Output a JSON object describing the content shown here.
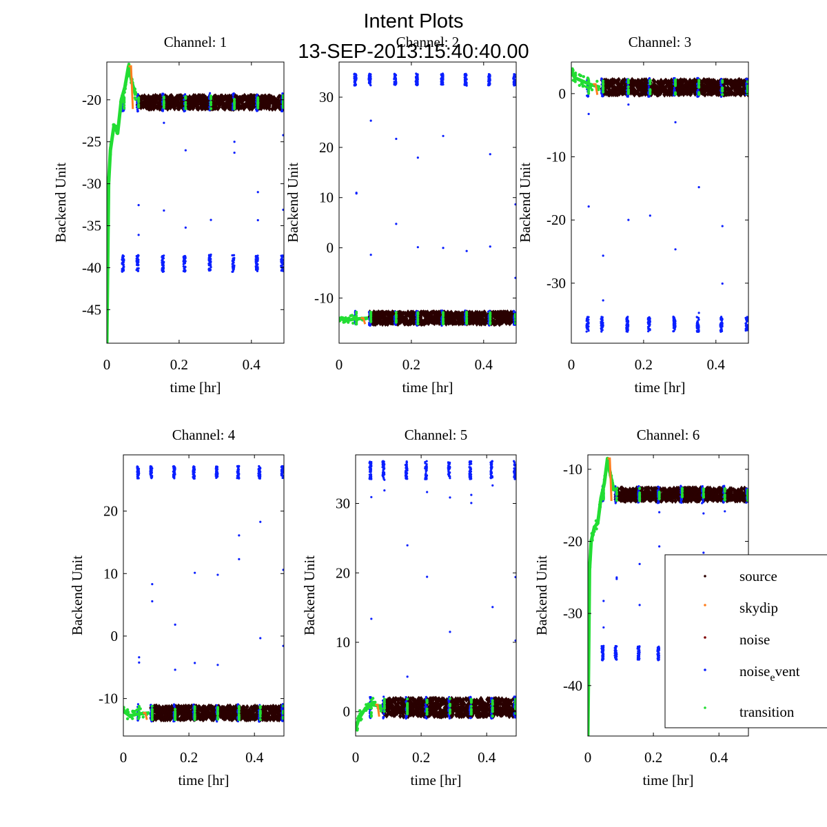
{
  "figure": {
    "title": "Intent Plots",
    "subtitle": "13-SEP-2013:15:40:40.00"
  },
  "legend": {
    "items": [
      {
        "label": "source",
        "color": "#2a0000"
      },
      {
        "label": "skydip",
        "color": "#ff7f1f"
      },
      {
        "label": "noise",
        "color": "#7f0000"
      },
      {
        "label": "noise",
        "sub": "e",
        "tail": "vent",
        "color": "#0a1fff"
      },
      {
        "label": "transition",
        "color": "#22dd33"
      }
    ]
  },
  "colors": {
    "source": "#2a0000",
    "skydip": "#ff7f1f",
    "noise": "#7f0000",
    "noise_event": "#0a1fff",
    "transition": "#22dd33",
    "axes": "#000000"
  },
  "chart_data": [
    {
      "type": "scatter",
      "title": "Channel: 1",
      "xlabel": "time [hr]",
      "ylabel": "Backend Unit",
      "xlim": [
        0,
        0.49
      ],
      "ylim": [
        -49,
        -15.5
      ],
      "xticks": [
        0,
        0.2,
        0.4
      ],
      "yticks": [
        -45,
        -40,
        -35,
        -30,
        -25,
        -20
      ],
      "series": {
        "source_level": -20.3,
        "source_spread": 0.8,
        "event_low_level": -39.5,
        "event_low_spread": 1.0,
        "event_x": [
          0.045,
          0.085,
          0.155,
          0.215,
          0.285,
          0.35,
          0.415,
          0.485
        ],
        "ramp": [
          [
            0.0,
            -49
          ],
          [
            0.005,
            -30
          ],
          [
            0.01,
            -26
          ],
          [
            0.02,
            -23
          ],
          [
            0.03,
            -24
          ],
          [
            0.04,
            -20
          ],
          [
            0.05,
            -18.5
          ],
          [
            0.06,
            -16
          ],
          [
            0.07,
            -18
          ],
          [
            0.08,
            -19.5
          ]
        ]
      }
    },
    {
      "type": "scatter",
      "title": "Channel: 2",
      "xlabel": "time [hr]",
      "ylabel": "Backend Unit",
      "xlim": [
        0,
        0.49
      ],
      "ylim": [
        -19,
        37
      ],
      "xticks": [
        0,
        0.2,
        0.4
      ],
      "yticks": [
        -10,
        0,
        10,
        20,
        30
      ],
      "series": {
        "source_level": -14,
        "source_spread": 1.2,
        "event_high_level": 33.5,
        "event_high_spread": 1.2,
        "event_x": [
          0.045,
          0.085,
          0.155,
          0.215,
          0.285,
          0.35,
          0.415,
          0.485
        ],
        "ramp": [
          [
            0.0,
            -14
          ],
          [
            0.02,
            -14.5
          ],
          [
            0.04,
            -14.2
          ],
          [
            0.08,
            -14
          ]
        ]
      }
    },
    {
      "type": "scatter",
      "title": "Channel: 3",
      "xlabel": "time [hr]",
      "ylabel": "Backend Unit",
      "xlim": [
        0,
        0.49
      ],
      "ylim": [
        -39.5,
        5
      ],
      "xticks": [
        0,
        0.2,
        0.4
      ],
      "yticks": [
        -30,
        -20,
        -10,
        0
      ],
      "series": {
        "source_level": 1.0,
        "source_spread": 1.2,
        "event_low_level": -36.5,
        "event_low_spread": 1.2,
        "event_x": [
          0.045,
          0.085,
          0.155,
          0.215,
          0.285,
          0.35,
          0.415,
          0.485
        ],
        "ramp": [
          [
            0.0,
            3.5
          ],
          [
            0.01,
            2.5
          ],
          [
            0.03,
            2
          ],
          [
            0.05,
            1.5
          ],
          [
            0.08,
            1
          ]
        ]
      }
    },
    {
      "type": "scatter",
      "title": "Channel: 4",
      "xlabel": "time [hr]",
      "ylabel": "Backend Unit",
      "xlim": [
        0,
        0.49
      ],
      "ylim": [
        -16,
        29
      ],
      "xticks": [
        0,
        0.2,
        0.4
      ],
      "yticks": [
        -10,
        0,
        10,
        20
      ],
      "series": {
        "source_level": -12.3,
        "source_spread": 1.1,
        "event_high_level": 26.2,
        "event_high_spread": 1.0,
        "event_x": [
          0.045,
          0.085,
          0.155,
          0.215,
          0.285,
          0.35,
          0.415,
          0.485
        ],
        "ramp": [
          [
            0.0,
            -12
          ],
          [
            0.02,
            -12.8
          ],
          [
            0.04,
            -12.5
          ],
          [
            0.08,
            -12.3
          ]
        ]
      }
    },
    {
      "type": "scatter",
      "title": "Channel: 5",
      "xlabel": "time [hr]",
      "ylabel": "Backend Unit",
      "xlim": [
        0,
        0.49
      ],
      "ylim": [
        -3.5,
        37
      ],
      "xticks": [
        0,
        0.2,
        0.4
      ],
      "yticks": [
        0,
        10,
        20,
        30
      ],
      "series": {
        "source_level": 0.6,
        "source_spread": 1.3,
        "event_high_level": 34.8,
        "event_high_spread": 1.3,
        "event_x": [
          0.045,
          0.085,
          0.155,
          0.215,
          0.285,
          0.35,
          0.415,
          0.485
        ],
        "ramp": [
          [
            0.0,
            -2.5
          ],
          [
            0.01,
            -1
          ],
          [
            0.03,
            0.5
          ],
          [
            0.05,
            1
          ],
          [
            0.08,
            0.8
          ]
        ]
      }
    },
    {
      "type": "scatter",
      "title": "Channel: 6",
      "xlabel": "time [hr]",
      "ylabel": "Backend Unit",
      "xlim": [
        0,
        0.49
      ],
      "ylim": [
        -47,
        -8
      ],
      "xticks": [
        0,
        0.2,
        0.4
      ],
      "yticks": [
        -40,
        -30,
        -20,
        -10
      ],
      "series": {
        "source_level": -13.5,
        "source_spread": 0.9,
        "event_low_level": -35.5,
        "event_low_spread": 1.0,
        "event_x": [
          0.045,
          0.085,
          0.155,
          0.215,
          0.285,
          0.35,
          0.415,
          0.485
        ],
        "ramp": [
          [
            0.0,
            -47
          ],
          [
            0.005,
            -24
          ],
          [
            0.01,
            -20
          ],
          [
            0.02,
            -18
          ],
          [
            0.03,
            -17.5
          ],
          [
            0.04,
            -14
          ],
          [
            0.05,
            -12
          ],
          [
            0.06,
            -8.5
          ],
          [
            0.07,
            -11
          ],
          [
            0.08,
            -13
          ]
        ]
      }
    }
  ]
}
